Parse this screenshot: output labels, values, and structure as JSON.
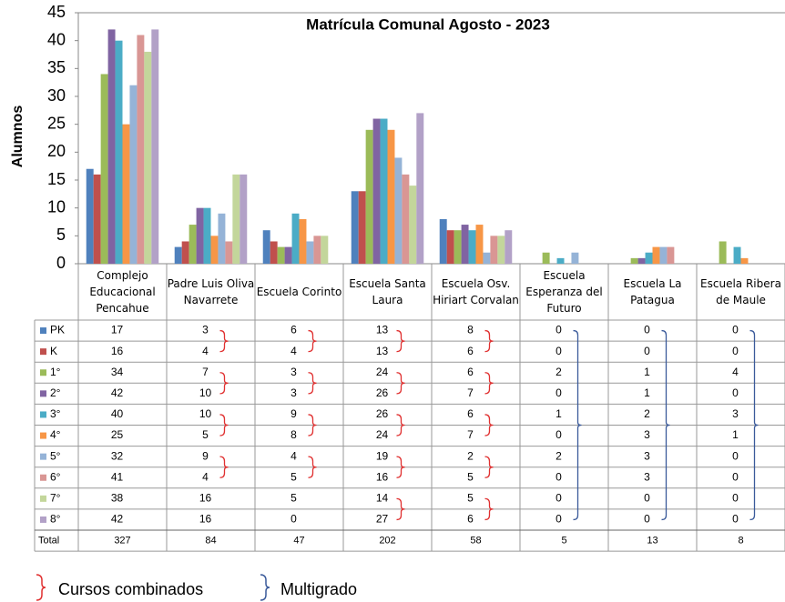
{
  "chart_data": {
    "type": "bar",
    "title": "Matrícula Comunal  Agosto - 2023",
    "y_label": "Alumnos",
    "categories": [
      "Complejo Educacional Pencahue",
      "Padre Luis Oliva Navarrete",
      "Escuela Corinto",
      "Escuela Santa Laura",
      "Escuela Osv. Hiriart Corvalan",
      "Escuela Esperanza del Futuro",
      "Escuela La Patagua",
      "Escuela Ribera de Maule"
    ],
    "series": [
      {
        "name": "PK",
        "color": "#4f81bd",
        "values": [
          17,
          3,
          6,
          13,
          8,
          0,
          0,
          0
        ]
      },
      {
        "name": "K",
        "color": "#c0504d",
        "values": [
          16,
          4,
          4,
          13,
          6,
          0,
          0,
          0
        ]
      },
      {
        "name": "1°",
        "color": "#9bbb59",
        "values": [
          34,
          7,
          3,
          24,
          6,
          2,
          1,
          4
        ]
      },
      {
        "name": "2°",
        "color": "#8064a2",
        "values": [
          42,
          10,
          3,
          26,
          7,
          0,
          1,
          0
        ]
      },
      {
        "name": "3°",
        "color": "#4bacc6",
        "values": [
          40,
          10,
          9,
          26,
          6,
          1,
          2,
          3
        ]
      },
      {
        "name": "4°",
        "color": "#f79646",
        "values": [
          25,
          5,
          8,
          24,
          7,
          0,
          3,
          1
        ]
      },
      {
        "name": "5°",
        "color": "#95b3d7",
        "values": [
          32,
          9,
          4,
          19,
          2,
          2,
          3,
          0
        ]
      },
      {
        "name": "6°",
        "color": "#d99694",
        "values": [
          41,
          4,
          5,
          16,
          5,
          0,
          3,
          0
        ]
      },
      {
        "name": "7°",
        "color": "#c3d69b",
        "values": [
          38,
          16,
          5,
          14,
          5,
          0,
          0,
          0
        ]
      },
      {
        "name": "8°",
        "color": "#b2a1c7",
        "values": [
          42,
          16,
          0,
          27,
          6,
          0,
          0,
          0
        ]
      }
    ],
    "total_label": "Total",
    "totals": [
      327,
      84,
      47,
      202,
      58,
      5,
      13,
      8
    ],
    "ylim": [
      0,
      45
    ],
    "yticks": [
      0,
      5,
      10,
      15,
      20,
      25,
      30,
      35,
      40,
      45
    ],
    "legend": {
      "combined": "Cursos combinados",
      "multigrade": "Multigrado"
    }
  }
}
